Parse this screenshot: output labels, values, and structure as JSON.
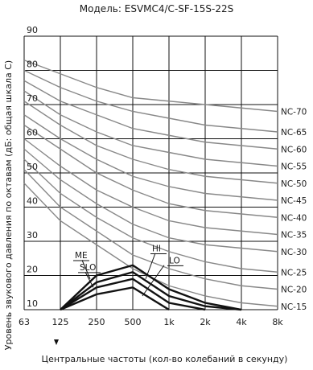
{
  "chart_data": {
    "type": "line",
    "title": "Модель: ESVMC4/C-SF-15S-22S",
    "xlabel": "Центральные частоты (кол-во колебаний в секунду)",
    "ylabel": "Уровень звукового давления по октавам (дБ: общая шкала С)",
    "x_categories": [
      "63",
      "125",
      "250",
      "500",
      "1k",
      "2k",
      "4k",
      "8k"
    ],
    "y_ticks": [
      10,
      20,
      30,
      40,
      50,
      60,
      70,
      80,
      90
    ],
    "ylim": [
      10,
      90
    ],
    "grid": true,
    "nc_curves": [
      {
        "name": "NC-70",
        "values": [
          83,
          79,
          75,
          72,
          71,
          70,
          69,
          68
        ]
      },
      {
        "name": "NC-65",
        "values": [
          80,
          75,
          71,
          68,
          66,
          64,
          63,
          62
        ]
      },
      {
        "name": "NC-60",
        "values": [
          77,
          71,
          67,
          63,
          61,
          59,
          58,
          57
        ]
      },
      {
        "name": "NC-55",
        "values": [
          74,
          67,
          62,
          58,
          56,
          54,
          53,
          52
        ]
      },
      {
        "name": "NC-50",
        "values": [
          71,
          64,
          58,
          54,
          51,
          49,
          48,
          47
        ]
      },
      {
        "name": "NC-45",
        "values": [
          67,
          60,
          54,
          49,
          46,
          44,
          43,
          42
        ]
      },
      {
        "name": "NC-40",
        "values": [
          64,
          57,
          50,
          45,
          41,
          39,
          38,
          37
        ]
      },
      {
        "name": "NC-35",
        "values": [
          60,
          52,
          45,
          40,
          36,
          34,
          33,
          32
        ]
      },
      {
        "name": "NC-30",
        "values": [
          57,
          48,
          41,
          35,
          31,
          29,
          28,
          27
        ]
      },
      {
        "name": "NC-25",
        "values": [
          54,
          44,
          37,
          31,
          27,
          24,
          22,
          21
        ]
      },
      {
        "name": "NC-20",
        "values": [
          51,
          40,
          33,
          26,
          22,
          19,
          17,
          16
        ]
      },
      {
        "name": "NC-15",
        "values": [
          47,
          36,
          29,
          22,
          17,
          14,
          12,
          11
        ]
      }
    ],
    "series": [
      {
        "name": "HI",
        "values": [
          null,
          10,
          20,
          23,
          16,
          12,
          10,
          null
        ]
      },
      {
        "name": "ME",
        "values": [
          null,
          10,
          18,
          21,
          14,
          11,
          10,
          null
        ]
      },
      {
        "name": "SLO",
        "values": [
          null,
          10,
          16.5,
          19,
          12,
          10,
          null,
          null
        ]
      },
      {
        "name": "LO",
        "values": [
          null,
          10,
          14.5,
          16.5,
          10,
          null,
          null,
          null
        ]
      }
    ],
    "series_labels": [
      "ME",
      "HI",
      "SLO",
      "LO"
    ],
    "nc_color": "#888888",
    "series_color": "#111111"
  }
}
